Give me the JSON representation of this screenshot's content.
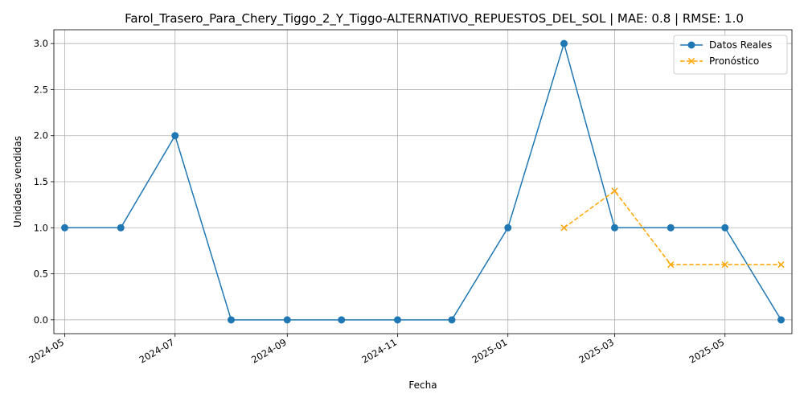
{
  "chart_data": {
    "type": "line",
    "title": "Farol_Trasero_Para_Chery_Tiggo_2_Y_Tiggo-ALTERNATIVO_REPUESTOS_DEL_SOL | MAE: 0.8 | RMSE: 1.0",
    "xlabel": "Fecha",
    "ylabel": "Unidades vendidas",
    "x_ticks": [
      "2024-05",
      "2024-07",
      "2024-09",
      "2024-11",
      "2025-01",
      "2025-03",
      "2025-05"
    ],
    "y_ticks": [
      "0.0",
      "0.5",
      "1.0",
      "1.5",
      "2.0",
      "2.5",
      "3.0"
    ],
    "ylim": [
      -0.15,
      3.15
    ],
    "xlim": [
      "2024-04-25",
      "2025-06-07"
    ],
    "grid": true,
    "legend_position": "top-right",
    "series": [
      {
        "name": "Datos Reales",
        "color": "#1f77b4",
        "line_style": "solid",
        "marker": "circle",
        "points": [
          {
            "x": "2024-05-01",
            "y": 1
          },
          {
            "x": "2024-06-01",
            "y": 1
          },
          {
            "x": "2024-07-01",
            "y": 2
          },
          {
            "x": "2024-08-01",
            "y": 0
          },
          {
            "x": "2024-09-01",
            "y": 0
          },
          {
            "x": "2024-10-01",
            "y": 0
          },
          {
            "x": "2024-11-01",
            "y": 0
          },
          {
            "x": "2024-12-01",
            "y": 0
          },
          {
            "x": "2025-01-01",
            "y": 1
          },
          {
            "x": "2025-02-01",
            "y": 3
          },
          {
            "x": "2025-03-01",
            "y": 1
          },
          {
            "x": "2025-04-01",
            "y": 1
          },
          {
            "x": "2025-05-01",
            "y": 1
          },
          {
            "x": "2025-06-01",
            "y": 0
          }
        ]
      },
      {
        "name": "Pronóstico",
        "color": "#ffa500",
        "line_style": "dashed",
        "marker": "x",
        "points": [
          {
            "x": "2025-02-01",
            "y": 1.0
          },
          {
            "x": "2025-03-01",
            "y": 1.4
          },
          {
            "x": "2025-04-01",
            "y": 0.6
          },
          {
            "x": "2025-05-01",
            "y": 0.6
          },
          {
            "x": "2025-06-01",
            "y": 0.6
          }
        ]
      }
    ]
  }
}
